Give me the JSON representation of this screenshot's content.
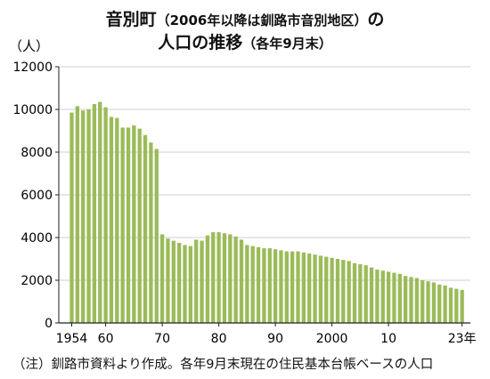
{
  "title": {
    "line1_main": "音別町",
    "line1_paren": "（2006年以降は釧路市音別地区）",
    "line1_end": "の",
    "line2_main": "人口の推移",
    "line2_paren": "（各年9月末）"
  },
  "note": "（注）釧路市資料より作成。各年9月末現在の住民基本台帳ベースの人口",
  "colors": {
    "bar": "#9bbb59",
    "axis": "#222222",
    "grid": "#cfcfcf"
  },
  "chart_data": {
    "type": "bar",
    "ylabel": "（人）",
    "ylim": [
      0,
      12000
    ],
    "yticks": [
      0,
      2000,
      4000,
      6000,
      8000,
      10000,
      12000
    ],
    "ytick_labels": [
      "0",
      "2000",
      "4000",
      "6000",
      "8000",
      "10000",
      "12000"
    ],
    "xtick_labels": [
      {
        "year": 1954,
        "label": "1954"
      },
      {
        "year": 1960,
        "label": "60"
      },
      {
        "year": 1970,
        "label": "70"
      },
      {
        "year": 1980,
        "label": "80"
      },
      {
        "year": 1990,
        "label": "90"
      },
      {
        "year": 2000,
        "label": "2000"
      },
      {
        "year": 2010,
        "label": "10"
      },
      {
        "year": 2023,
        "label": "23年"
      }
    ],
    "categories": [
      1954,
      1955,
      1956,
      1957,
      1958,
      1959,
      1960,
      1961,
      1962,
      1963,
      1964,
      1965,
      1966,
      1967,
      1968,
      1969,
      1970,
      1971,
      1972,
      1973,
      1974,
      1975,
      1976,
      1977,
      1978,
      1979,
      1980,
      1981,
      1982,
      1983,
      1984,
      1985,
      1986,
      1987,
      1988,
      1989,
      1990,
      1991,
      1992,
      1993,
      1994,
      1995,
      1996,
      1997,
      1998,
      1999,
      2000,
      2001,
      2002,
      2003,
      2004,
      2005,
      2006,
      2007,
      2008,
      2009,
      2010,
      2011,
      2012,
      2013,
      2014,
      2015,
      2016,
      2017,
      2018,
      2019,
      2020,
      2021,
      2022,
      2023
    ],
    "values": [
      9850,
      10150,
      9950,
      10000,
      10250,
      10350,
      10100,
      9650,
      9600,
      9150,
      9150,
      9250,
      9100,
      8800,
      8450,
      8150,
      4150,
      3950,
      3850,
      3750,
      3650,
      3600,
      3900,
      3850,
      4100,
      4250,
      4250,
      4200,
      4150,
      4050,
      3900,
      3650,
      3600,
      3550,
      3500,
      3500,
      3450,
      3400,
      3350,
      3350,
      3350,
      3300,
      3250,
      3200,
      3150,
      3100,
      3050,
      3000,
      2950,
      2900,
      2800,
      2750,
      2700,
      2600,
      2500,
      2450,
      2400,
      2350,
      2300,
      2200,
      2150,
      2100,
      2000,
      1950,
      1900,
      1800,
      1750,
      1650,
      1600,
      1550
    ]
  }
}
